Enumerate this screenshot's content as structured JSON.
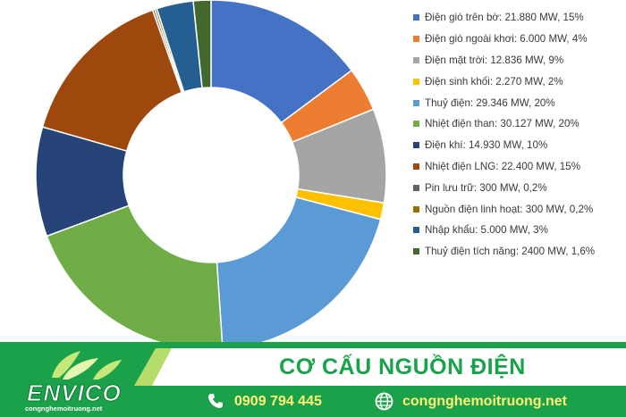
{
  "chart_data": {
    "type": "pie",
    "subtype": "donut",
    "legend_position": "right",
    "slices": [
      {
        "label": "Điện gió trên bờ: 21.880 MW, 15%",
        "value": 21880,
        "color": "#4472c4"
      },
      {
        "label": "Điện gió ngoài khơi: 6.000 MW, 4%",
        "value": 6000,
        "color": "#ed7d31"
      },
      {
        "label": "Điện mặt trời: 12.836 MW, 9%",
        "value": 12836,
        "color": "#a5a5a5"
      },
      {
        "label": "Điện sinh khối: 2.270 MW, 2%",
        "value": 2270,
        "color": "#ffc000"
      },
      {
        "label": "Thuỷ điện: 29.346 MW, 20%",
        "value": 29346,
        "color": "#5b9bd5"
      },
      {
        "label": "Nhiệt điện than: 30.127 MW,  20%",
        "value": 30127,
        "color": "#70ad47"
      },
      {
        "label": "Điện khí: 14.930 MW, 10%",
        "value": 14930,
        "color": "#264478"
      },
      {
        "label": "Nhiệt điện LNG: 22.400 MW, 15%",
        "value": 22400,
        "color": "#9e480e"
      },
      {
        "label": "Pin lưu trữ: 300 MW, 0,2%",
        "value": 300,
        "color": "#636363"
      },
      {
        "label": "Nguồn điện linh hoạt: 300 MW, 0,2%",
        "value": 300,
        "color": "#997300"
      },
      {
        "label": "Nhập khẩu: 5.000 MW, 3%",
        "value": 5000,
        "color": "#255e91"
      },
      {
        "label": "Thuỷ điện tích năng: 2400 MW, 1,6%",
        "value": 2400,
        "color": "#43682b"
      }
    ]
  },
  "banner": {
    "title": "CƠ CẤU NGUỒN ĐIỆN",
    "logo_text": "ENVICO",
    "logo_domain": "congnghemoitruong.net",
    "phone": "0909 794 445",
    "website": "congnghemoitruong.net",
    "colors": {
      "green": "#1aa14a",
      "light_green": "#b6dd6b",
      "yellow": "#fff176"
    }
  },
  "icons": {
    "phone": "phone-icon",
    "web": "globe-icon"
  }
}
